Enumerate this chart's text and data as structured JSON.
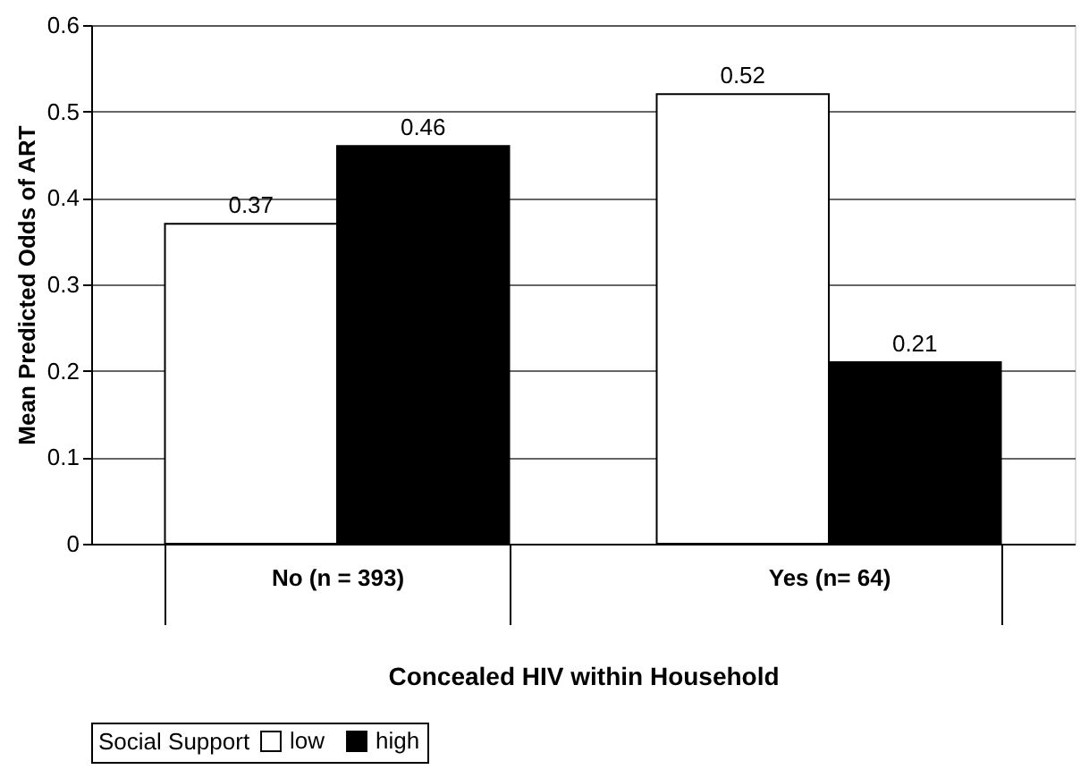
{
  "chart_data": {
    "type": "bar",
    "xlabel": "Concealed HIV within Household",
    "ylabel": "Mean Predicted Odds of ART",
    "legend_title": "Social Support",
    "categories": [
      "No (n = 393)",
      "Yes (n= 64)"
    ],
    "series": [
      {
        "name": "low",
        "color": "#ffffff",
        "values": [
          0.37,
          0.52
        ]
      },
      {
        "name": "high",
        "color": "#000000",
        "values": [
          0.46,
          0.21
        ]
      }
    ],
    "ylim": [
      0,
      0.6
    ],
    "yticks": [
      0,
      0.1,
      0.2,
      0.3,
      0.4,
      0.5,
      0.6
    ],
    "grid": "y",
    "legend": "bottom",
    "data_labels": true
  }
}
